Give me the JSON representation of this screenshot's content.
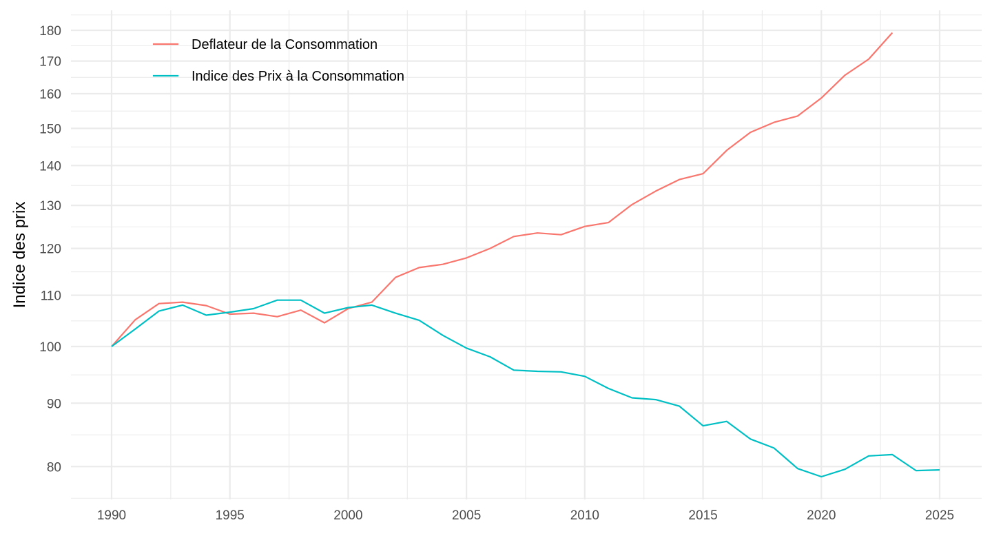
{
  "chart_data": {
    "type": "line",
    "title": "",
    "xlabel": "",
    "ylabel": "Indice des prix",
    "y_scale": "log",
    "xlim": [
      1988.3,
      2026.7
    ],
    "ylim": [
      74.5,
      186
    ],
    "x_ticks": [
      1990,
      1995,
      2000,
      2005,
      2010,
      2015,
      2020,
      2025
    ],
    "x_tick_labels": [
      "1990",
      "1995",
      "2000",
      "2005",
      "2010",
      "2015",
      "2020",
      "2025"
    ],
    "x_minor_ticks": [
      1992.5,
      1997.5,
      2002.5,
      2007.5,
      2012.5,
      2017.5,
      2022.5
    ],
    "y_ticks": [
      80,
      90,
      100,
      110,
      120,
      130,
      140,
      150,
      160,
      170,
      180
    ],
    "y_tick_labels": [
      "80",
      "90",
      "100",
      "110",
      "120",
      "130",
      "140",
      "150",
      "160",
      "170",
      "180"
    ],
    "grid": true,
    "legend": {
      "position": "top-left",
      "inside": true
    },
    "series": [
      {
        "name": "Deflateur de la Consommation",
        "color": "#F8766D",
        "x": [
          1990,
          1991,
          1992,
          1993,
          1994,
          1995,
          1996,
          1997,
          1998,
          1999,
          2000,
          2001,
          2002,
          2003,
          2004,
          2005,
          2006,
          2007,
          2008,
          2009,
          2010,
          2011,
          2012,
          2013,
          2014,
          2015,
          2016,
          2017,
          2018,
          2019,
          2020,
          2021,
          2022,
          2023
        ],
        "values": [
          100.0,
          105.1,
          108.3,
          108.6,
          107.9,
          106.2,
          106.4,
          105.7,
          107.0,
          104.5,
          107.3,
          108.6,
          113.7,
          115.8,
          116.5,
          117.9,
          120.0,
          122.7,
          123.5,
          123.1,
          125.0,
          125.9,
          130.2,
          133.5,
          136.4,
          137.9,
          144.0,
          148.9,
          151.7,
          153.5,
          158.7,
          165.6,
          170.6,
          179.2
        ]
      },
      {
        "name": "Indice des Prix à la Consommation",
        "color": "#00BFC4",
        "x": [
          1990,
          1991,
          1992,
          1993,
          1994,
          1995,
          1996,
          1997,
          1998,
          1999,
          2000,
          2001,
          2002,
          2003,
          2004,
          2005,
          2006,
          2007,
          2008,
          2009,
          2010,
          2011,
          2012,
          2013,
          2014,
          2015,
          2016,
          2017,
          2018,
          2019,
          2020,
          2021,
          2022,
          2023,
          2024,
          2025
        ],
        "values": [
          100.0,
          103.3,
          106.8,
          108.0,
          106.0,
          106.6,
          107.3,
          109.0,
          109.0,
          106.4,
          107.5,
          108.0,
          106.4,
          105.0,
          102.1,
          99.7,
          98.1,
          95.7,
          95.5,
          95.4,
          94.6,
          92.5,
          90.9,
          90.6,
          89.5,
          86.3,
          87.0,
          84.2,
          82.8,
          79.7,
          78.5,
          79.6,
          81.6,
          81.8,
          79.4,
          79.5
        ]
      }
    ]
  }
}
